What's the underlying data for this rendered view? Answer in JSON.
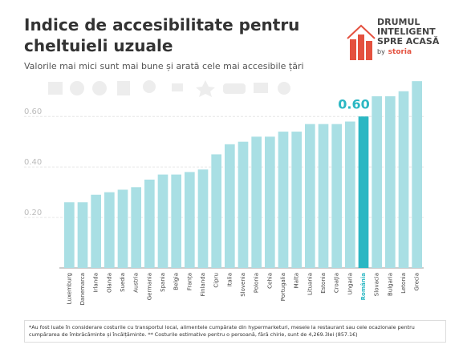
{
  "chart_data": {
    "type": "bar",
    "title": "Indice de accesibilitate pentru cheltuieli uzuale",
    "subtitle": "Valorile mai mici sunt mai bune și arată cele mai accesibile țări",
    "categories": [
      "Luxemburg",
      "Danemarca",
      "Irlanda",
      "Olanda",
      "Suedia",
      "Austria",
      "Germania",
      "Spania",
      "Belgia",
      "Franța",
      "Finlanda",
      "Cipru",
      "Italia",
      "Slovenia",
      "Polonia",
      "Cehia",
      "Portugalia",
      "Malta",
      "Lituania",
      "Estonia",
      "Croația",
      "Ungaria",
      "România",
      "Slovacia",
      "Bulgaria",
      "Letonia",
      "Grecia"
    ],
    "values": [
      0.26,
      0.26,
      0.29,
      0.3,
      0.31,
      0.32,
      0.35,
      0.37,
      0.37,
      0.38,
      0.39,
      0.45,
      0.49,
      0.5,
      0.52,
      0.52,
      0.54,
      0.54,
      0.57,
      0.57,
      0.57,
      0.58,
      0.6,
      0.68,
      0.68,
      0.7,
      0.74
    ],
    "value_labels": [
      null,
      null,
      null,
      null,
      null,
      null,
      null,
      null,
      null,
      null,
      null,
      null,
      null,
      null,
      null,
      null,
      null,
      null,
      null,
      null,
      null,
      null,
      "0.60",
      null,
      null,
      null,
      null
    ],
    "colors": [
      "#a9dfe4",
      "#a9dfe4",
      "#a9dfe4",
      "#a9dfe4",
      "#a9dfe4",
      "#a9dfe4",
      "#a9dfe4",
      "#a9dfe4",
      "#a9dfe4",
      "#a9dfe4",
      "#a9dfe4",
      "#a9dfe4",
      "#a9dfe4",
      "#a9dfe4",
      "#a9dfe4",
      "#a9dfe4",
      "#a9dfe4",
      "#a9dfe4",
      "#a9dfe4",
      "#a9dfe4",
      "#a9dfe4",
      "#a9dfe4",
      "#2bb7c3",
      "#a9dfe4",
      "#a9dfe4",
      "#a9dfe4",
      "#a9dfe4"
    ],
    "ylim": [
      0,
      0.75
    ],
    "yticks": [
      {
        "value": 0.2,
        "label": "0.20"
      },
      {
        "value": 0.4,
        "label": "0.40"
      },
      {
        "value": 0.6,
        "label": "0.60"
      }
    ],
    "grid": true
  },
  "logo": {
    "lines": [
      "DRUMUL",
      "INTELIGENT",
      "SPRE ACASĂ"
    ],
    "by": "by",
    "brand": "storia"
  },
  "footnote": "*Au fost luate în considerare costurile cu transportul local, alimentele cumpărate din hypermarketuri, mesele la restaurant sau cele ocazionale pentru cumpărarea de îmbrăcăminte și încălțăminte. ** Costurile estimative pentru o persoană, fără chirie, sunt de 4,269.3lei (857.1€)"
}
